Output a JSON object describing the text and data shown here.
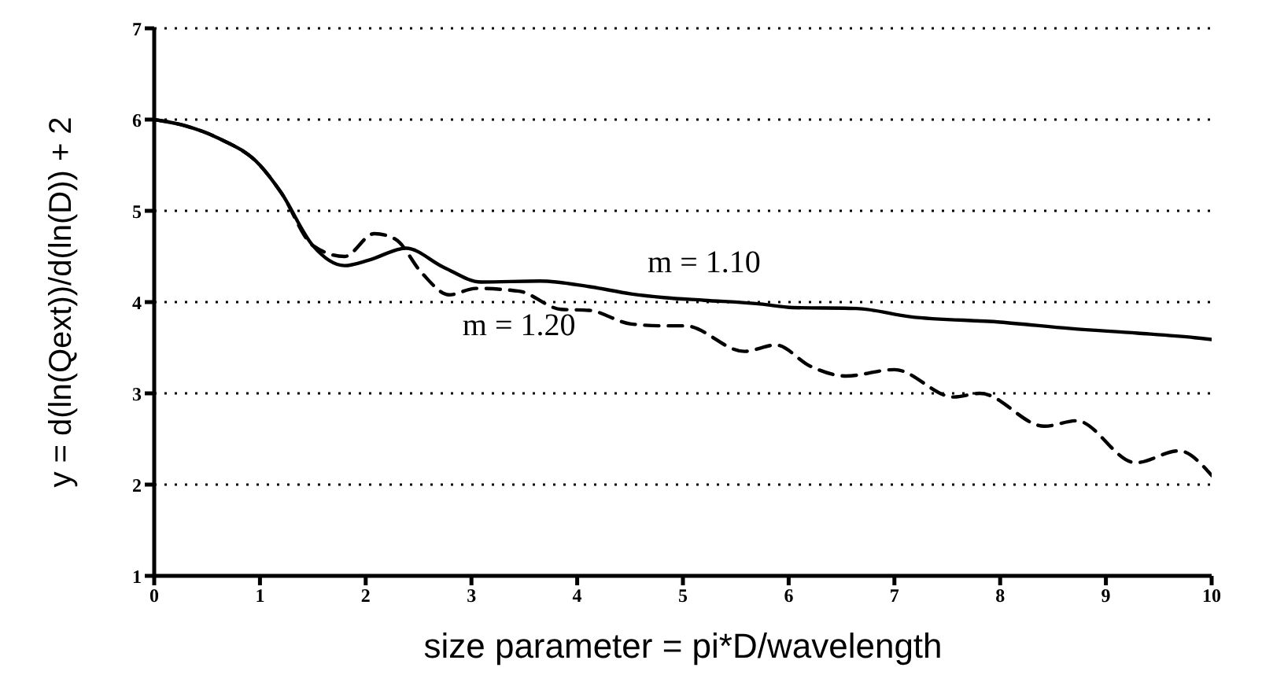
{
  "chart_data": {
    "type": "line",
    "xlabel": "size parameter = pi*D/wavelength",
    "ylabel": "y = d(ln(Qext))/d(ln(D)) + 2",
    "xlim": [
      0,
      10
    ],
    "ylim": [
      1,
      7
    ],
    "xticks": [
      0,
      1,
      2,
      3,
      4,
      5,
      6,
      7,
      8,
      9,
      10
    ],
    "yticks": [
      1,
      2,
      3,
      4,
      5,
      6,
      7
    ],
    "grid": "y",
    "marker": "none",
    "series": [
      {
        "name": "m = 1.10",
        "color": "#000000",
        "line_style": "solid",
        "x": [
          0,
          0.3,
          0.6,
          1.0,
          1.2,
          1.5,
          1.8,
          2.03,
          2.38,
          2.74,
          3.09,
          3.65,
          4.11,
          4.51,
          4.82,
          5.2,
          5.73,
          6.04,
          6.64,
          7.15,
          8.0,
          8.67,
          9.3,
          9.84,
          10
        ],
        "values": [
          6.0,
          5.93,
          5.8,
          5.5,
          5.2,
          4.62,
          4.4,
          4.46,
          4.59,
          4.38,
          4.22,
          4.23,
          4.17,
          4.09,
          4.05,
          4.02,
          3.98,
          3.94,
          3.93,
          3.84,
          3.78,
          3.71,
          3.66,
          3.61,
          3.59
        ]
      },
      {
        "name": "m = 1.20",
        "color": "#000000",
        "line_style": "dashed",
        "x": [
          0,
          0.3,
          0.6,
          1.0,
          1.2,
          1.5,
          1.8,
          2.08,
          2.28,
          2.53,
          2.79,
          3.04,
          3.45,
          3.85,
          4.11,
          4.51,
          4.82,
          5.02,
          5.58,
          5.88,
          6.2,
          6.54,
          7.0,
          7.56,
          7.81,
          8.42,
          8.72,
          9.28,
          9.69,
          10
        ],
        "values": [
          6.0,
          5.93,
          5.8,
          5.5,
          5.2,
          4.62,
          4.5,
          4.75,
          4.69,
          4.32,
          4.08,
          4.15,
          4.12,
          3.92,
          3.91,
          3.76,
          3.74,
          3.74,
          3.46,
          3.53,
          3.3,
          3.19,
          3.26,
          2.96,
          3.0,
          2.64,
          2.7,
          2.24,
          2.37,
          2.1
        ]
      }
    ]
  }
}
